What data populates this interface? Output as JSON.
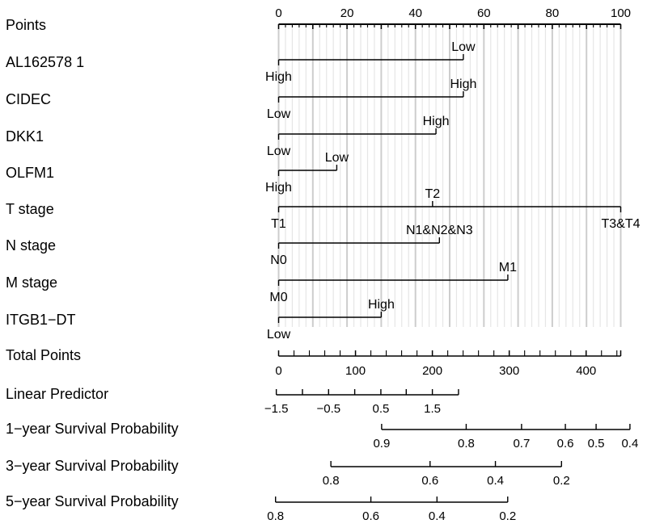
{
  "chart_data": {
    "type": "nomogram",
    "points_axis": {
      "label": "Points",
      "range": [
        0,
        100
      ],
      "major_ticks": [
        0,
        20,
        40,
        60,
        80,
        100
      ],
      "minor_step": 2
    },
    "grid_lines": "light gray vertical line every 2 points; darker every 10 points",
    "variables": [
      {
        "name": "AL162578 1",
        "levels": [
          {
            "label": "High",
            "points": 0
          },
          {
            "label": "Low",
            "points": 54
          }
        ]
      },
      {
        "name": "CIDEC",
        "levels": [
          {
            "label": "Low",
            "points": 0
          },
          {
            "label": "High",
            "points": 54
          }
        ]
      },
      {
        "name": "DKK1",
        "levels": [
          {
            "label": "Low",
            "points": 0
          },
          {
            "label": "High",
            "points": 46
          }
        ]
      },
      {
        "name": "OLFM1",
        "levels": [
          {
            "label": "High",
            "points": 0
          },
          {
            "label": "Low",
            "points": 17
          }
        ]
      },
      {
        "name": "T stage",
        "levels": [
          {
            "label": "T1",
            "points": 0
          },
          {
            "label": "T2",
            "points": 45
          },
          {
            "label": "T3&T4",
            "points": 100
          }
        ]
      },
      {
        "name": "N stage",
        "levels": [
          {
            "label": "N0",
            "points": 0
          },
          {
            "label": "N1&N2&N3",
            "points": 47
          }
        ]
      },
      {
        "name": "M stage",
        "levels": [
          {
            "label": "M0",
            "points": 0
          },
          {
            "label": "M1",
            "points": 67
          }
        ]
      },
      {
        "name": "ITGB1−DT",
        "levels": [
          {
            "label": "Low",
            "points": 0
          },
          {
            "label": "High",
            "points": 30
          }
        ]
      }
    ],
    "total_points": {
      "label": "Total Points",
      "range": [
        0,
        445
      ],
      "major_ticks": [
        0,
        100,
        200,
        300,
        400
      ],
      "tick_labels": [
        "0",
        "100",
        "200",
        "300",
        "400"
      ],
      "minor_step": 20
    },
    "linear_predictor": {
      "label": "Linear Predictor",
      "ticks": [
        -1.5,
        -1.0,
        -0.5,
        0.0,
        0.5,
        1.0,
        1.5,
        2.0
      ],
      "tick_labels": [
        "−1.5",
        "−0.5",
        "0.5",
        "1.5"
      ],
      "labeled_ticks": [
        -1.5,
        -0.5,
        0.5,
        1.5
      ],
      "total_points_at": [
        -3,
        31,
        65,
        99,
        133,
        166,
        200,
        234
      ]
    },
    "survival_axes": [
      {
        "label": "1−year Survival Probability",
        "ticks": [
          0.9,
          0.8,
          0.7,
          0.6,
          0.5,
          0.4
        ],
        "tick_labels": [
          "0.9",
          "0.8",
          "0.7",
          "0.6",
          "0.5",
          "0.4"
        ],
        "total_points_at": [
          134,
          244,
          316,
          373,
          413,
          457
        ]
      },
      {
        "label": "3−year Survival Probability",
        "ticks": [
          0.8,
          0.6,
          0.4,
          0.2
        ],
        "tick_labels": [
          "0.8",
          "0.6",
          "0.4",
          "0.2"
        ],
        "total_points_at": [
          68,
          197,
          282,
          368
        ]
      },
      {
        "label": "5−year Survival Probability",
        "ticks": [
          0.8,
          0.6,
          0.4,
          0.2
        ],
        "tick_labels": [
          "0.8",
          "0.6",
          "0.4",
          "0.2"
        ],
        "total_points_at": [
          -4,
          120,
          206,
          298
        ]
      }
    ]
  }
}
